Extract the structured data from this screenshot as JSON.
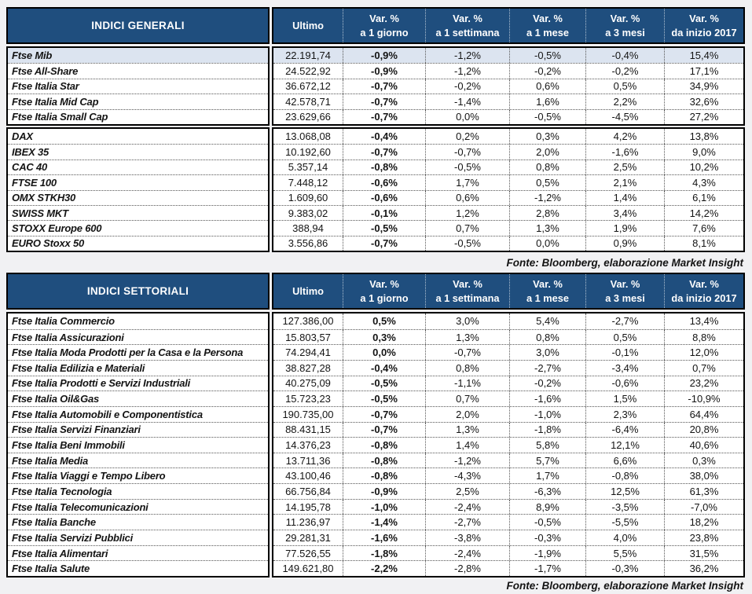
{
  "source_note": "Fonte: Bloomberg, elaborazione Market Insight",
  "colors": {
    "header_bg": "#1f4e7e",
    "highlight_row_bg": "#dce4f0",
    "page_bg": "#f1f1f3"
  },
  "columns": [
    {
      "top": "Ultimo",
      "bottom": ""
    },
    {
      "top": "Var. %",
      "bottom": "a 1 giorno"
    },
    {
      "top": "Var. %",
      "bottom": "a 1 settimana"
    },
    {
      "top": "Var. %",
      "bottom": "a 1 mese"
    },
    {
      "top": "Var. %",
      "bottom": "a 3 mesi"
    },
    {
      "top": "Var. %",
      "bottom": "da inizio 2017"
    }
  ],
  "general": {
    "title": "INDICI GENERALI",
    "sections": [
      {
        "rows": [
          {
            "label": "Ftse Mib",
            "highlight": true,
            "values": [
              "22.191,74",
              "-0,9%",
              "-1,2%",
              "-0,5%",
              "-0,4%",
              "15,4%"
            ]
          },
          {
            "label": "Ftse All-Share",
            "values": [
              "24.522,92",
              "-0,9%",
              "-1,2%",
              "-0,2%",
              "-0,2%",
              "17,1%"
            ]
          },
          {
            "label": "Ftse Italia Star",
            "values": [
              "36.672,12",
              "-0,7%",
              "-0,2%",
              "0,6%",
              "0,5%",
              "34,9%"
            ]
          },
          {
            "label": "Ftse Italia Mid Cap",
            "values": [
              "42.578,71",
              "-0,7%",
              "-1,4%",
              "1,6%",
              "2,2%",
              "32,6%"
            ]
          },
          {
            "label": "Ftse Italia Small Cap",
            "values": [
              "23.629,66",
              "-0,7%",
              "0,0%",
              "-0,5%",
              "-4,5%",
              "27,2%"
            ]
          }
        ]
      },
      {
        "rows": [
          {
            "label": "DAX",
            "values": [
              "13.068,08",
              "-0,4%",
              "0,2%",
              "0,3%",
              "4,2%",
              "13,8%"
            ]
          },
          {
            "label": "IBEX 35",
            "values": [
              "10.192,60",
              "-0,7%",
              "-0,7%",
              "2,0%",
              "-1,6%",
              "9,0%"
            ]
          },
          {
            "label": "CAC 40",
            "values": [
              "5.357,14",
              "-0,8%",
              "-0,5%",
              "0,8%",
              "2,5%",
              "10,2%"
            ]
          },
          {
            "label": "FTSE 100",
            "values": [
              "7.448,12",
              "-0,6%",
              "1,7%",
              "0,5%",
              "2,1%",
              "4,3%"
            ]
          },
          {
            "label": "OMX STKH30",
            "values": [
              "1.609,60",
              "-0,6%",
              "0,6%",
              "-1,2%",
              "1,4%",
              "6,1%"
            ]
          },
          {
            "label": "SWISS MKT",
            "values": [
              "9.383,02",
              "-0,1%",
              "1,2%",
              "2,8%",
              "3,4%",
              "14,2%"
            ]
          },
          {
            "label": "STOXX Europe 600",
            "values": [
              "388,94",
              "-0,5%",
              "0,7%",
              "1,3%",
              "1,9%",
              "7,6%"
            ]
          },
          {
            "label": "EURO Stoxx 50",
            "values": [
              "3.556,86",
              "-0,7%",
              "-0,5%",
              "0,0%",
              "0,9%",
              "8,1%"
            ]
          }
        ]
      }
    ]
  },
  "sector": {
    "title": "INDICI SETTORIALI",
    "sections": [
      {
        "rows": [
          {
            "label": "Ftse Italia Commercio",
            "values": [
              "127.386,00",
              "0,5%",
              "3,0%",
              "5,4%",
              "-2,7%",
              "13,4%"
            ]
          },
          {
            "label": "Ftse Italia Assicurazioni",
            "values": [
              "15.803,57",
              "0,3%",
              "1,3%",
              "0,8%",
              "0,5%",
              "8,8%"
            ]
          },
          {
            "label": "Ftse Italia Moda Prodotti per la Casa e la Persona",
            "values": [
              "74.294,41",
              "0,0%",
              "-0,7%",
              "3,0%",
              "-0,1%",
              "12,0%"
            ]
          },
          {
            "label": "Ftse Italia Edilizia e Materiali",
            "values": [
              "38.827,28",
              "-0,4%",
              "0,8%",
              "-2,7%",
              "-3,4%",
              "0,7%"
            ]
          },
          {
            "label": "Ftse Italia Prodotti e Servizi Industriali",
            "values": [
              "40.275,09",
              "-0,5%",
              "-1,1%",
              "-0,2%",
              "-0,6%",
              "23,2%"
            ]
          },
          {
            "label": "Ftse Italia Oil&Gas",
            "values": [
              "15.723,23",
              "-0,5%",
              "0,7%",
              "-1,6%",
              "1,5%",
              "-10,9%"
            ]
          },
          {
            "label": "Ftse Italia Automobili e Componentistica",
            "values": [
              "190.735,00",
              "-0,7%",
              "2,0%",
              "-1,0%",
              "2,3%",
              "64,4%"
            ]
          },
          {
            "label": "Ftse Italia Servizi Finanziari",
            "values": [
              "88.431,15",
              "-0,7%",
              "1,3%",
              "-1,8%",
              "-6,4%",
              "20,8%"
            ]
          },
          {
            "label": "Ftse Italia Beni Immobili",
            "values": [
              "14.376,23",
              "-0,8%",
              "1,4%",
              "5,8%",
              "12,1%",
              "40,6%"
            ]
          },
          {
            "label": "Ftse Italia Media",
            "values": [
              "13.711,36",
              "-0,8%",
              "-1,2%",
              "5,7%",
              "6,6%",
              "0,3%"
            ]
          },
          {
            "label": "Ftse Italia Viaggi e Tempo Libero",
            "values": [
              "43.100,46",
              "-0,8%",
              "-4,3%",
              "1,7%",
              "-0,8%",
              "38,0%"
            ]
          },
          {
            "label": "Ftse Italia Tecnologia",
            "values": [
              "66.756,84",
              "-0,9%",
              "2,5%",
              "-6,3%",
              "12,5%",
              "61,3%"
            ]
          },
          {
            "label": "Ftse Italia Telecomunicazioni",
            "values": [
              "14.195,78",
              "-1,0%",
              "-2,4%",
              "8,9%",
              "-3,5%",
              "-7,0%"
            ]
          },
          {
            "label": "Ftse Italia Banche",
            "values": [
              "11.236,97",
              "-1,4%",
              "-2,7%",
              "-0,5%",
              "-5,5%",
              "18,2%"
            ]
          },
          {
            "label": "Ftse Italia Servizi Pubblici",
            "values": [
              "29.281,31",
              "-1,6%",
              "-3,8%",
              "-0,3%",
              "4,0%",
              "23,8%"
            ]
          },
          {
            "label": "Ftse Italia Alimentari",
            "values": [
              "77.526,55",
              "-1,8%",
              "-2,4%",
              "-1,9%",
              "5,5%",
              "31,5%"
            ]
          },
          {
            "label": "Ftse Italia Salute",
            "values": [
              "149.621,80",
              "-2,2%",
              "-2,8%",
              "-1,7%",
              "-0,3%",
              "36,2%"
            ]
          }
        ]
      }
    ]
  }
}
